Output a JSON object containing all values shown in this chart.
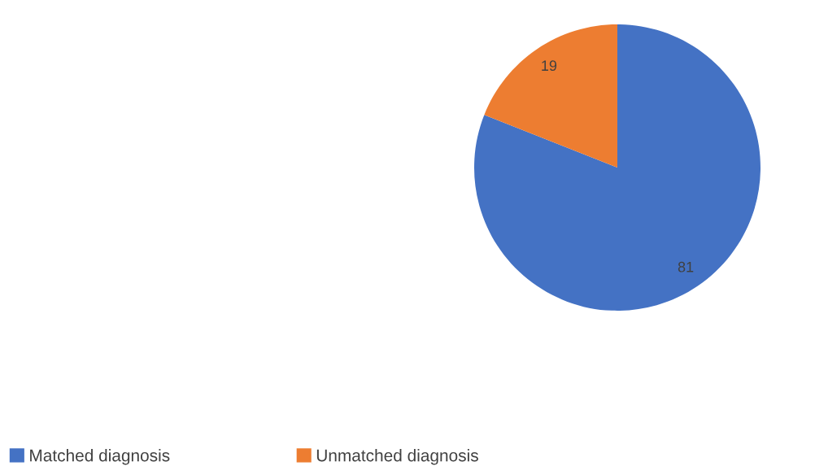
{
  "chart_data": {
    "type": "pie",
    "categories": [
      "Matched diagnosis",
      "Unmatched diagnosis"
    ],
    "values": [
      81,
      19
    ],
    "colors": [
      "#4472c4",
      "#ed7d31"
    ],
    "data_labels": true,
    "legend": "bottom"
  }
}
